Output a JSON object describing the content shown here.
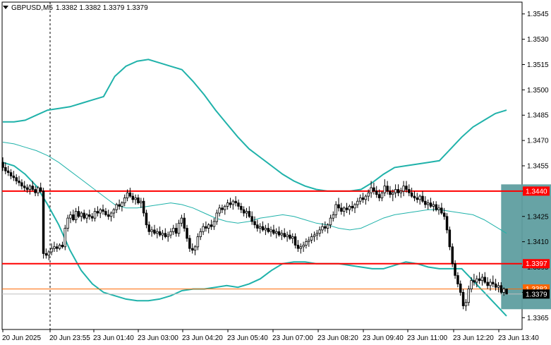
{
  "header": {
    "symbol_label": "GBPUSD,M5",
    "ohlc_label": "1.3382 1.3382 1.3379 1.3379"
  },
  "colors": {
    "background": "#ffffff",
    "frame": "#000000",
    "candle": "#000000",
    "bollinger": "#20b2aa",
    "ma": "#20b2aa",
    "level_line": "#ff0000",
    "level_label_bg": "#ff0000",
    "price_line": "#ff6600",
    "bid_line": "#c0c0c0",
    "box": "#5f9ea0"
  },
  "chart_data": {
    "type": "candlestick",
    "symbol": "GBPUSD",
    "timeframe": "M5",
    "ylim": [
      1.3358,
      1.3552
    ],
    "yticks": [
      1.3545,
      1.353,
      1.3515,
      1.35,
      1.3485,
      1.347,
      1.3455,
      1.344,
      1.3425,
      1.341,
      1.3395,
      1.338,
      1.3365
    ],
    "ytick_labels": [
      "1.3545",
      "1.3530",
      "1.3515",
      "1.3500",
      "1.3485",
      "1.3470",
      "1.3455",
      "1.3440",
      "1.3425",
      "1.3410",
      "1.3395",
      "1.3380",
      "1.3365"
    ],
    "xticks": [
      "20 Jun 2025",
      "20 Jun 23:55",
      "23 Jun 01:40",
      "23 Jun 03:00",
      "23 Jun 04:20",
      "23 Jun 05:40",
      "23 Jun 07:00",
      "23 Jun 08:20",
      "23 Jun 09:40",
      "23 Jun 11:00",
      "23 Jun 12:20",
      "23 Jun 13:40"
    ],
    "levels": [
      {
        "price": 1.344,
        "label": "1.3440"
      },
      {
        "price": 1.3397,
        "label": "1.3397"
      }
    ],
    "current_price": {
      "price": 1.3379,
      "label": "1.3379"
    },
    "price_line": {
      "price": 1.3382,
      "label": "1.3382"
    },
    "highlight_box": {
      "start_bar": 184,
      "end_bar": 206,
      "high": 1.3444,
      "low": 1.337
    },
    "bollinger_upper": [
      1.3481,
      1.3481,
      1.3482,
      1.3485,
      1.3488,
      1.3489,
      1.349,
      1.3492,
      1.3494,
      1.3496,
      1.3508,
      1.3514,
      1.3517,
      1.3518,
      1.3516,
      1.3514,
      1.3512,
      1.3505,
      1.3497,
      1.3488,
      1.348,
      1.3472,
      1.3465,
      1.346,
      1.3455,
      1.345,
      1.3446,
      1.3443,
      1.3441,
      1.344,
      1.344,
      1.344,
      1.3441,
      1.3445,
      1.345,
      1.3454,
      1.3455,
      1.3456,
      1.3457,
      1.3458,
      1.3465,
      1.3472,
      1.3478,
      1.3482,
      1.3486,
      1.3488
    ],
    "bollinger_middle": [
      1.3469,
      1.3468,
      1.3466,
      1.3464,
      1.3461,
      1.3457,
      1.3452,
      1.3447,
      1.3442,
      1.3437,
      1.3432,
      1.343,
      1.343,
      1.3431,
      1.3432,
      1.3433,
      1.3432,
      1.343,
      1.3427,
      1.3424,
      1.3422,
      1.3421,
      1.3422,
      1.3424,
      1.3425,
      1.3426,
      1.3425,
      1.3423,
      1.3421,
      1.342,
      1.3418,
      1.3417,
      1.3418,
      1.3421,
      1.3424,
      1.3426,
      1.3427,
      1.3428,
      1.3429,
      1.3429,
      1.3428,
      1.3427,
      1.3426,
      1.3423,
      1.3419,
      1.3415
    ],
    "bollinger_lower": [
      1.3457,
      1.3455,
      1.345,
      1.3443,
      1.3432,
      1.342,
      1.3405,
      1.3393,
      1.3385,
      1.338,
      1.3378,
      1.3376,
      1.3375,
      1.3375,
      1.3376,
      1.3378,
      1.3381,
      1.3382,
      1.3382,
      1.3383,
      1.3384,
      1.3383,
      1.3385,
      1.3388,
      1.3393,
      1.3397,
      1.3398,
      1.3398,
      1.3397,
      1.3397,
      1.3397,
      1.3396,
      1.3395,
      1.3394,
      1.3394,
      1.3396,
      1.3398,
      1.3397,
      1.3395,
      1.3394,
      1.3394,
      1.3394,
      1.3387,
      1.338,
      1.3373,
      1.3366
    ],
    "candles": [
      [
        1.3457,
        1.346,
        1.3452,
        1.3454
      ],
      [
        1.3454,
        1.3457,
        1.345,
        1.3452
      ],
      [
        1.3452,
        1.3455,
        1.3449,
        1.3451
      ],
      [
        1.3451,
        1.3453,
        1.3447,
        1.3449
      ],
      [
        1.3449,
        1.3452,
        1.3446,
        1.3448
      ],
      [
        1.3448,
        1.345,
        1.3444,
        1.3446
      ],
      [
        1.3446,
        1.3449,
        1.3443,
        1.3445
      ],
      [
        1.3445,
        1.3447,
        1.3441,
        1.3443
      ],
      [
        1.3443,
        1.3446,
        1.344,
        1.3442
      ],
      [
        1.3442,
        1.3444,
        1.3439,
        1.3441
      ],
      [
        1.3441,
        1.3444,
        1.3438,
        1.3443
      ],
      [
        1.3443,
        1.3446,
        1.344,
        1.3441
      ],
      [
        1.3441,
        1.3443,
        1.3437,
        1.3439
      ],
      [
        1.3439,
        1.3443,
        1.3437,
        1.3442
      ],
      [
        1.3442,
        1.3445,
        1.3439,
        1.344
      ],
      [
        1.344,
        1.3442,
        1.34,
        1.3403
      ],
      [
        1.3403,
        1.3406,
        1.34,
        1.3402
      ],
      [
        1.3402,
        1.3405,
        1.3399,
        1.3404
      ],
      [
        1.3404,
        1.3409,
        1.3402,
        1.3406
      ],
      [
        1.3406,
        1.341,
        1.3404,
        1.3407
      ],
      [
        1.3407,
        1.3409,
        1.3404,
        1.3406
      ],
      [
        1.3406,
        1.3409,
        1.3405,
        1.3408
      ],
      [
        1.3408,
        1.341,
        1.3406,
        1.3407
      ],
      [
        1.3407,
        1.342,
        1.3405,
        1.3418
      ],
      [
        1.3418,
        1.3426,
        1.3416,
        1.3424
      ],
      [
        1.3424,
        1.3428,
        1.3421,
        1.3426
      ],
      [
        1.3426,
        1.3429,
        1.3422,
        1.3423
      ],
      [
        1.3423,
        1.343,
        1.3421,
        1.3428
      ],
      [
        1.3428,
        1.3431,
        1.3424,
        1.3425
      ],
      [
        1.3425,
        1.3428,
        1.3422,
        1.3427
      ],
      [
        1.3427,
        1.3429,
        1.3423,
        1.3424
      ],
      [
        1.3424,
        1.3427,
        1.3421,
        1.3426
      ],
      [
        1.3426,
        1.3429,
        1.3423,
        1.3425
      ],
      [
        1.3425,
        1.3427,
        1.3422,
        1.3424
      ],
      [
        1.3424,
        1.343,
        1.3422,
        1.3428
      ],
      [
        1.3428,
        1.3431,
        1.3425,
        1.3427
      ],
      [
        1.3427,
        1.343,
        1.3424,
        1.3429
      ],
      [
        1.3429,
        1.3432,
        1.3426,
        1.3428
      ],
      [
        1.3428,
        1.343,
        1.3425,
        1.3426
      ],
      [
        1.3426,
        1.3429,
        1.3423,
        1.3425
      ],
      [
        1.3425,
        1.3428,
        1.3422,
        1.3427
      ],
      [
        1.3427,
        1.343,
        1.3424,
        1.3429
      ],
      [
        1.3429,
        1.3433,
        1.3427,
        1.3432
      ],
      [
        1.3432,
        1.3435,
        1.3429,
        1.3431
      ],
      [
        1.3431,
        1.3434,
        1.3428,
        1.3433
      ],
      [
        1.3433,
        1.3438,
        1.3431,
        1.3436
      ],
      [
        1.3436,
        1.3441,
        1.3434,
        1.3439
      ],
      [
        1.3439,
        1.3442,
        1.3436,
        1.3437
      ],
      [
        1.3437,
        1.3439,
        1.3433,
        1.3435
      ],
      [
        1.3435,
        1.3438,
        1.3432,
        1.3436
      ],
      [
        1.3436,
        1.3438,
        1.3432,
        1.3433
      ],
      [
        1.3433,
        1.3436,
        1.343,
        1.3434
      ],
      [
        1.3434,
        1.3436,
        1.3425,
        1.3427
      ],
      [
        1.3427,
        1.3429,
        1.3418,
        1.342
      ],
      [
        1.342,
        1.3422,
        1.3414,
        1.3416
      ],
      [
        1.3416,
        1.3419,
        1.3413,
        1.3417
      ],
      [
        1.3417,
        1.342,
        1.3414,
        1.3415
      ],
      [
        1.3415,
        1.3418,
        1.3412,
        1.3416
      ],
      [
        1.3416,
        1.3419,
        1.3413,
        1.3414
      ],
      [
        1.3414,
        1.3417,
        1.3411,
        1.3415
      ],
      [
        1.3415,
        1.3418,
        1.3412,
        1.3413
      ],
      [
        1.3413,
        1.3416,
        1.341,
        1.3414
      ],
      [
        1.3414,
        1.3418,
        1.3412,
        1.3416
      ],
      [
        1.3416,
        1.342,
        1.3414,
        1.3418
      ],
      [
        1.3418,
        1.3421,
        1.3413,
        1.3415
      ],
      [
        1.3415,
        1.3423,
        1.3413,
        1.3421
      ],
      [
        1.3421,
        1.3426,
        1.3419,
        1.3424
      ],
      [
        1.3424,
        1.3427,
        1.3416,
        1.3418
      ],
      [
        1.3418,
        1.342,
        1.341,
        1.3412
      ],
      [
        1.3412,
        1.3414,
        1.3404,
        1.3406
      ],
      [
        1.3406,
        1.3409,
        1.3403,
        1.3405
      ],
      [
        1.3405,
        1.3408,
        1.3402,
        1.3407
      ],
      [
        1.3407,
        1.3415,
        1.3405,
        1.3413
      ],
      [
        1.3413,
        1.3418,
        1.3411,
        1.3416
      ],
      [
        1.3416,
        1.3421,
        1.3414,
        1.3419
      ],
      [
        1.3419,
        1.3422,
        1.3416,
        1.3418
      ],
      [
        1.3418,
        1.3421,
        1.3415,
        1.342
      ],
      [
        1.342,
        1.3423,
        1.3417,
        1.3419
      ],
      [
        1.3419,
        1.3424,
        1.3417,
        1.3422
      ],
      [
        1.3422,
        1.3429,
        1.342,
        1.3427
      ],
      [
        1.3427,
        1.3432,
        1.3425,
        1.343
      ],
      [
        1.343,
        1.3432,
        1.3427,
        1.3429
      ],
      [
        1.3429,
        1.3432,
        1.3426,
        1.3431
      ],
      [
        1.3431,
        1.3435,
        1.3429,
        1.3433
      ],
      [
        1.3433,
        1.3436,
        1.343,
        1.3432
      ],
      [
        1.3432,
        1.3435,
        1.3429,
        1.3434
      ],
      [
        1.3434,
        1.3437,
        1.3431,
        1.3433
      ],
      [
        1.3433,
        1.3435,
        1.3429,
        1.3431
      ],
      [
        1.3431,
        1.3433,
        1.3427,
        1.3429
      ],
      [
        1.3429,
        1.3431,
        1.3425,
        1.3427
      ],
      [
        1.3427,
        1.343,
        1.3424,
        1.3428
      ],
      [
        1.3428,
        1.3431,
        1.3424,
        1.3425
      ],
      [
        1.3425,
        1.3428,
        1.342,
        1.3422
      ],
      [
        1.3422,
        1.3425,
        1.3418,
        1.342
      ],
      [
        1.342,
        1.3423,
        1.3416,
        1.3418
      ],
      [
        1.3418,
        1.3421,
        1.3415,
        1.3419
      ],
      [
        1.3419,
        1.3422,
        1.3416,
        1.3417
      ],
      [
        1.3417,
        1.342,
        1.3414,
        1.3418
      ],
      [
        1.3418,
        1.3421,
        1.3415,
        1.3416
      ],
      [
        1.3416,
        1.3419,
        1.3413,
        1.3417
      ],
      [
        1.3417,
        1.342,
        1.3414,
        1.3415
      ],
      [
        1.3415,
        1.3418,
        1.3412,
        1.3416
      ],
      [
        1.3416,
        1.3419,
        1.3413,
        1.3414
      ],
      [
        1.3414,
        1.3417,
        1.3411,
        1.3415
      ],
      [
        1.3415,
        1.3418,
        1.3412,
        1.3413
      ],
      [
        1.3413,
        1.3416,
        1.341,
        1.3414
      ],
      [
        1.3414,
        1.3417,
        1.3411,
        1.3412
      ],
      [
        1.3412,
        1.3415,
        1.3409,
        1.3413
      ],
      [
        1.3413,
        1.3415,
        1.3406,
        1.3408
      ],
      [
        1.3408,
        1.3411,
        1.3404,
        1.3406
      ],
      [
        1.3406,
        1.3409,
        1.3403,
        1.3407
      ],
      [
        1.3407,
        1.341,
        1.3404,
        1.3408
      ],
      [
        1.3408,
        1.3412,
        1.3406,
        1.341
      ],
      [
        1.341,
        1.3413,
        1.3407,
        1.3411
      ],
      [
        1.3411,
        1.3415,
        1.3409,
        1.3413
      ],
      [
        1.3413,
        1.3416,
        1.341,
        1.3414
      ],
      [
        1.3414,
        1.3417,
        1.3411,
        1.3415
      ],
      [
        1.3415,
        1.3419,
        1.3413,
        1.3417
      ],
      [
        1.3417,
        1.3421,
        1.3415,
        1.3419
      ],
      [
        1.3419,
        1.3422,
        1.3416,
        1.3418
      ],
      [
        1.3418,
        1.3421,
        1.3415,
        1.342
      ],
      [
        1.342,
        1.3426,
        1.3418,
        1.3424
      ],
      [
        1.3424,
        1.3428,
        1.3422,
        1.3426
      ],
      [
        1.3426,
        1.3434,
        1.3424,
        1.3432
      ],
      [
        1.3432,
        1.3436,
        1.3428,
        1.343
      ],
      [
        1.343,
        1.3433,
        1.3426,
        1.3428
      ],
      [
        1.3428,
        1.3431,
        1.3425,
        1.343
      ],
      [
        1.343,
        1.3433,
        1.3427,
        1.3429
      ],
      [
        1.3429,
        1.3432,
        1.3426,
        1.3431
      ],
      [
        1.3431,
        1.3434,
        1.3428,
        1.343
      ],
      [
        1.343,
        1.3433,
        1.3427,
        1.3432
      ],
      [
        1.3432,
        1.3436,
        1.343,
        1.3434
      ],
      [
        1.3434,
        1.3438,
        1.3432,
        1.3436
      ],
      [
        1.3436,
        1.3439,
        1.3433,
        1.3435
      ],
      [
        1.3435,
        1.3438,
        1.3432,
        1.3437
      ],
      [
        1.3437,
        1.3441,
        1.3434,
        1.3439
      ],
      [
        1.3439,
        1.3446,
        1.3436,
        1.3442
      ],
      [
        1.3442,
        1.3445,
        1.3438,
        1.344
      ],
      [
        1.344,
        1.3443,
        1.3436,
        1.3438
      ],
      [
        1.3438,
        1.3441,
        1.3434,
        1.3436
      ],
      [
        1.3436,
        1.344,
        1.3434,
        1.3439
      ],
      [
        1.3439,
        1.3447,
        1.3437,
        1.3443
      ],
      [
        1.3443,
        1.3446,
        1.3438,
        1.344
      ],
      [
        1.344,
        1.3443,
        1.3436,
        1.3438
      ],
      [
        1.3438,
        1.3441,
        1.3434,
        1.3439
      ],
      [
        1.3439,
        1.3444,
        1.3436,
        1.3441
      ],
      [
        1.3441,
        1.3444,
        1.3437,
        1.3439
      ],
      [
        1.3439,
        1.3442,
        1.3436,
        1.344
      ],
      [
        1.344,
        1.3446,
        1.3437,
        1.3443
      ],
      [
        1.3443,
        1.3446,
        1.3439,
        1.3441
      ],
      [
        1.3441,
        1.3444,
        1.3437,
        1.3439
      ],
      [
        1.3439,
        1.3442,
        1.3436,
        1.3437
      ],
      [
        1.3437,
        1.344,
        1.3434,
        1.3436
      ],
      [
        1.3436,
        1.3439,
        1.3433,
        1.3435
      ],
      [
        1.3435,
        1.3438,
        1.3432,
        1.3437
      ],
      [
        1.3437,
        1.344,
        1.3433,
        1.3434
      ],
      [
        1.3434,
        1.3437,
        1.343,
        1.3432
      ],
      [
        1.3432,
        1.3435,
        1.3429,
        1.3433
      ],
      [
        1.3433,
        1.3436,
        1.343,
        1.3431
      ],
      [
        1.3431,
        1.3434,
        1.3428,
        1.3432
      ],
      [
        1.3432,
        1.3434,
        1.3428,
        1.3429
      ],
      [
        1.3429,
        1.3432,
        1.3426,
        1.343
      ],
      [
        1.343,
        1.3433,
        1.3426,
        1.3427
      ],
      [
        1.3427,
        1.343,
        1.3423,
        1.3425
      ],
      [
        1.3425,
        1.3427,
        1.3415,
        1.3417
      ],
      [
        1.3417,
        1.3419,
        1.3405,
        1.3407
      ],
      [
        1.3407,
        1.3409,
        1.3395,
        1.3397
      ],
      [
        1.3397,
        1.3399,
        1.3388,
        1.339
      ],
      [
        1.339,
        1.3392,
        1.3383,
        1.3385
      ],
      [
        1.3385,
        1.3387,
        1.3378,
        1.338
      ],
      [
        1.338,
        1.3382,
        1.337,
        1.3372
      ],
      [
        1.3372,
        1.3376,
        1.3369,
        1.3374
      ],
      [
        1.3374,
        1.3384,
        1.3372,
        1.3382
      ],
      [
        1.3382,
        1.3389,
        1.338,
        1.3387
      ],
      [
        1.3387,
        1.3391,
        1.3384,
        1.3386
      ],
      [
        1.3386,
        1.339,
        1.3383,
        1.3388
      ],
      [
        1.3388,
        1.3392,
        1.3385,
        1.3387
      ],
      [
        1.3387,
        1.3391,
        1.3384,
        1.3389
      ],
      [
        1.3389,
        1.3392,
        1.3385,
        1.3386
      ],
      [
        1.3386,
        1.3389,
        1.3382,
        1.3384
      ],
      [
        1.3384,
        1.3388,
        1.3381,
        1.3386
      ],
      [
        1.3386,
        1.339,
        1.3383,
        1.3385
      ],
      [
        1.3385,
        1.3388,
        1.3381,
        1.3383
      ],
      [
        1.3383,
        1.3386,
        1.338,
        1.3384
      ],
      [
        1.3384,
        1.3386,
        1.3379,
        1.338
      ],
      [
        1.338,
        1.3383,
        1.3378,
        1.3382
      ],
      [
        1.3382,
        1.3382,
        1.3379,
        1.3379
      ]
    ]
  }
}
